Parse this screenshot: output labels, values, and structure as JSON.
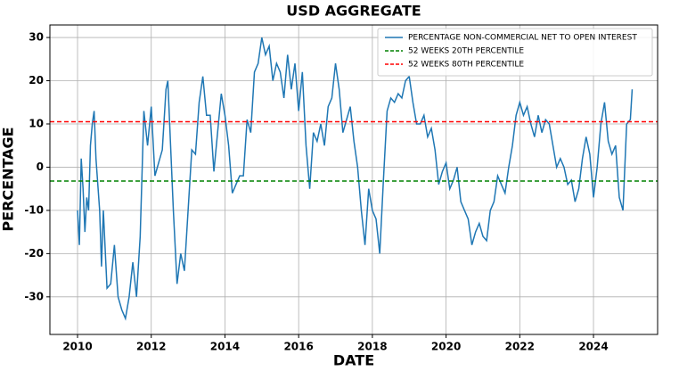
{
  "chart_data": {
    "type": "line",
    "title": "USD AGGREGATE",
    "x_label": "DATE",
    "y_label": "PERCENTAGE",
    "xlim": [
      2009.25,
      2025.74
    ],
    "ylim": [
      -38.7,
      32.9
    ],
    "xticks": [
      2010,
      2012,
      2014,
      2016,
      2018,
      2020,
      2022,
      2024
    ],
    "yticks": [
      -30,
      -20,
      -10,
      0,
      10,
      20,
      30
    ],
    "grid": true,
    "legend": "upper right",
    "x": [
      2010.0,
      2010.05,
      2010.1,
      2010.15,
      2010.2,
      2010.25,
      2010.3,
      2010.35,
      2010.4,
      2010.45,
      2010.5,
      2010.6,
      2010.65,
      2010.7,
      2010.8,
      2010.9,
      2011.0,
      2011.1,
      2011.2,
      2011.3,
      2011.4,
      2011.5,
      2011.6,
      2011.7,
      2011.8,
      2011.9,
      2012.0,
      2012.1,
      2012.2,
      2012.3,
      2012.4,
      2012.45,
      2012.5,
      2012.6,
      2012.7,
      2012.8,
      2012.9,
      2013.0,
      2013.1,
      2013.2,
      2013.3,
      2013.4,
      2013.5,
      2013.6,
      2013.7,
      2013.8,
      2013.9,
      2014.0,
      2014.1,
      2014.2,
      2014.3,
      2014.4,
      2014.5,
      2014.6,
      2014.7,
      2014.8,
      2014.9,
      2015.0,
      2015.1,
      2015.2,
      2015.3,
      2015.4,
      2015.5,
      2015.6,
      2015.7,
      2015.8,
      2015.9,
      2016.0,
      2016.1,
      2016.2,
      2016.3,
      2016.4,
      2016.5,
      2016.6,
      2016.7,
      2016.8,
      2016.9,
      2017.0,
      2017.1,
      2017.2,
      2017.3,
      2017.4,
      2017.5,
      2017.6,
      2017.7,
      2017.8,
      2017.9,
      2018.0,
      2018.1,
      2018.2,
      2018.3,
      2018.4,
      2018.5,
      2018.6,
      2018.7,
      2018.8,
      2018.9,
      2019.0,
      2019.1,
      2019.2,
      2019.3,
      2019.4,
      2019.5,
      2019.6,
      2019.7,
      2019.8,
      2019.9,
      2020.0,
      2020.1,
      2020.2,
      2020.3,
      2020.4,
      2020.5,
      2020.6,
      2020.7,
      2020.8,
      2020.9,
      2021.0,
      2021.1,
      2021.2,
      2021.3,
      2021.4,
      2021.5,
      2021.6,
      2021.7,
      2021.8,
      2021.9,
      2022.0,
      2022.1,
      2022.2,
      2022.3,
      2022.4,
      2022.5,
      2022.6,
      2022.7,
      2022.8,
      2022.9,
      2023.0,
      2023.1,
      2023.2,
      2023.3,
      2023.4,
      2023.5,
      2023.6,
      2023.7,
      2023.8,
      2023.9,
      2024.0,
      2024.1,
      2024.2,
      2024.3,
      2024.4,
      2024.5,
      2024.6,
      2024.7,
      2024.8,
      2024.9,
      2025.0,
      2025.05
    ],
    "series": [
      {
        "name": "PERCENTAGE NON-COMMERCIAL NET TO OPEN INTEREST",
        "color": "#1f77b4",
        "values": [
          -10,
          -18,
          2,
          -5,
          -15,
          -7,
          -10,
          5,
          10,
          13,
          2,
          -10,
          -23,
          -10,
          -28,
          -27,
          -18,
          -30,
          -33,
          -35,
          -30,
          -22,
          -30,
          -16,
          13,
          5,
          14,
          -2,
          1,
          4,
          18,
          20,
          10,
          -10,
          -27,
          -20,
          -24,
          -10,
          4,
          3,
          15,
          21,
          12,
          12,
          -1,
          8,
          17,
          12,
          5,
          -6,
          -4,
          -2,
          -2,
          11,
          8,
          22,
          24,
          30,
          26,
          28,
          20,
          24,
          22,
          16,
          26,
          18,
          24,
          13,
          22,
          5,
          -5,
          8,
          6,
          10,
          5,
          14,
          16,
          24,
          18,
          8,
          11,
          14,
          6,
          0,
          -10,
          -18,
          -5,
          -10,
          -12,
          -20,
          -3,
          13,
          16,
          15,
          17,
          16,
          20,
          21,
          15,
          10,
          10,
          12,
          7,
          9,
          4,
          -4,
          -1,
          1,
          -5,
          -3,
          0,
          -8,
          -10,
          -12,
          -18,
          -15,
          -13,
          -16,
          -17,
          -10,
          -8,
          -2,
          -4,
          -6,
          0,
          5,
          12,
          15,
          12,
          14,
          10,
          7,
          12,
          8,
          11,
          10,
          5,
          0,
          2,
          0,
          -4,
          -3,
          -8,
          -5,
          2,
          7,
          3,
          -7,
          0,
          10,
          15,
          6,
          3,
          5,
          -7,
          -10,
          10,
          11,
          18
        ]
      }
    ],
    "reference_lines": [
      {
        "name": "52 WEEKS 20TH PERCENTILE",
        "color": "#008000",
        "value": -3.2
      },
      {
        "name": "52 WEEKS 80TH PERCENTILE",
        "color": "#ff0000",
        "value": 10.5
      }
    ]
  }
}
